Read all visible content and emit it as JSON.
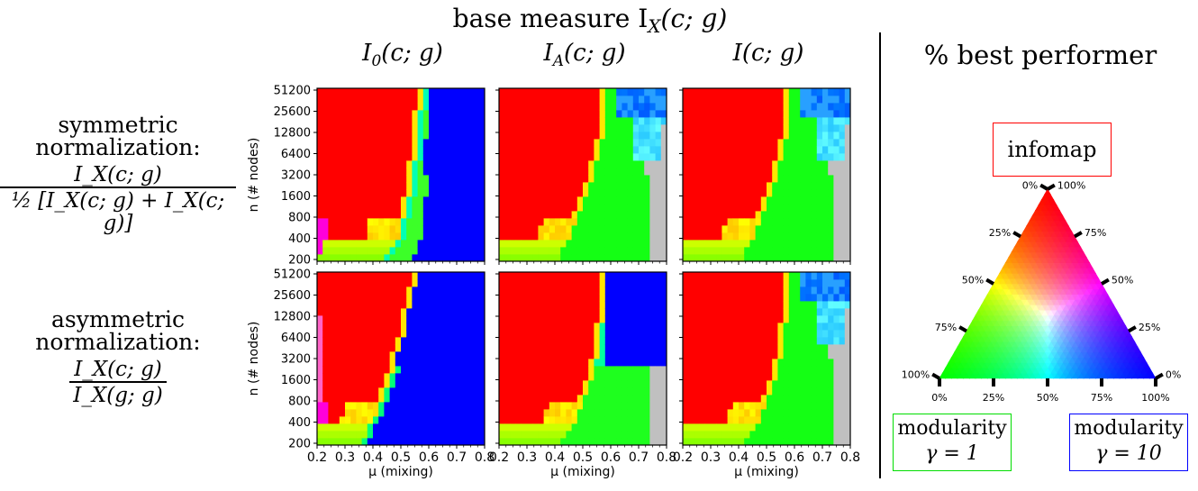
{
  "header": {
    "title": "base measure I",
    "title_sub": "X",
    "title_args": "(c; g)"
  },
  "columns": [
    {
      "label": "I",
      "sub": "0",
      "args": "(c; g)"
    },
    {
      "label": "I",
      "sub": "A",
      "args": "(c; g)"
    },
    {
      "label": "I",
      "sub": "",
      "args": "(c; g)"
    }
  ],
  "rows": [
    {
      "line1": "symmetric",
      "line2": "normalization:",
      "numerator": "I_X(c; g)",
      "denominator": "½ [I_X(c; g) + I_X(c; g)]"
    },
    {
      "line1": "asymmetric",
      "line2": "normalization:",
      "numerator": "I_X(c; g)",
      "denominator": "I_X(g; g)"
    }
  ],
  "legend": {
    "title": "% best performer",
    "top_label": "infomap",
    "bottom_left_label_1": "modularity",
    "bottom_left_label_2": "γ = 1",
    "bottom_right_label_1": "modularity",
    "bottom_right_label_2": "γ = 10",
    "left_ticks": [
      "0%",
      "25%",
      "50%",
      "75%",
      "100%"
    ],
    "right_ticks": [
      "100%",
      "75%",
      "50%",
      "25%",
      "0%"
    ],
    "bottom_ticks": [
      "0%",
      "25%",
      "50%",
      "75%",
      "100%"
    ],
    "colors": {
      "infomap": "#ff0000",
      "modularity_1": "#00ff00",
      "modularity_10": "#0000ff"
    }
  },
  "chart_data": {
    "type": "heatmap",
    "xlabel": "μ (mixing)",
    "ylabel": "n (# nodes)",
    "x_ticks": [
      "0.2",
      "0.3",
      "0.4",
      "0.5",
      "0.6",
      "0.7",
      "0.8"
    ],
    "y_ticks": [
      "51200",
      "25600",
      "12800",
      "6400",
      "3200",
      "1600",
      "800",
      "400",
      "200"
    ],
    "xlim": [
      0.2,
      0.8
    ],
    "missing_color": "#c0c0c0",
    "panels": [
      {
        "row": "symmetric",
        "column": "I_0(c;g)",
        "red_boundary_mu": [
          0.44,
          0.49,
          0.52,
          0.54,
          0.55,
          0.56,
          0.57,
          0.58
        ],
        "green_band_end_mu": [
          0.54,
          0.57,
          0.58,
          0.6,
          0.58,
          0.59,
          0.6,
          0.6
        ],
        "rest": "modularity γ=10 (blue)"
      },
      {
        "row": "symmetric",
        "column": "I_A(c;g)",
        "red_boundary_mu": [
          0.41,
          0.45,
          0.49,
          0.52,
          0.55,
          0.57,
          0.58,
          0.59
        ],
        "rest": "modularity γ=1 (green), blue at large n and high μ, gray at μ ≥ 0.75 small n"
      },
      {
        "row": "symmetric",
        "column": "I(c;g)",
        "red_boundary_mu": [
          0.41,
          0.45,
          0.49,
          0.52,
          0.55,
          0.57,
          0.58,
          0.59
        ],
        "rest": "modularity γ=1 (green), blue at large n and high μ, gray at μ ≥ 0.72"
      },
      {
        "row": "asymmetric",
        "column": "I_0(c;g)",
        "red_boundary_mu": [
          0.36,
          0.4,
          0.44,
          0.47,
          0.5,
          0.52,
          0.54,
          0.56
        ],
        "rest": "modularity γ=10 (blue)"
      },
      {
        "row": "asymmetric",
        "column": "I_A(c;g)",
        "red_boundary_mu": [
          0.42,
          0.47,
          0.51,
          0.54,
          0.56,
          0.57,
          0.58,
          0.59
        ],
        "rest": "green below n=3200, blue block μ ≥ 0.6 for n ≥ 3200"
      },
      {
        "row": "asymmetric",
        "column": "I(c;g)",
        "red_boundary_mu": [
          0.42,
          0.47,
          0.51,
          0.54,
          0.56,
          0.57,
          0.58,
          0.59
        ],
        "rest": "modularity γ=1 (green), blue at n ≥ 25600 high μ, gray at μ ≥ 0.72"
      }
    ]
  }
}
